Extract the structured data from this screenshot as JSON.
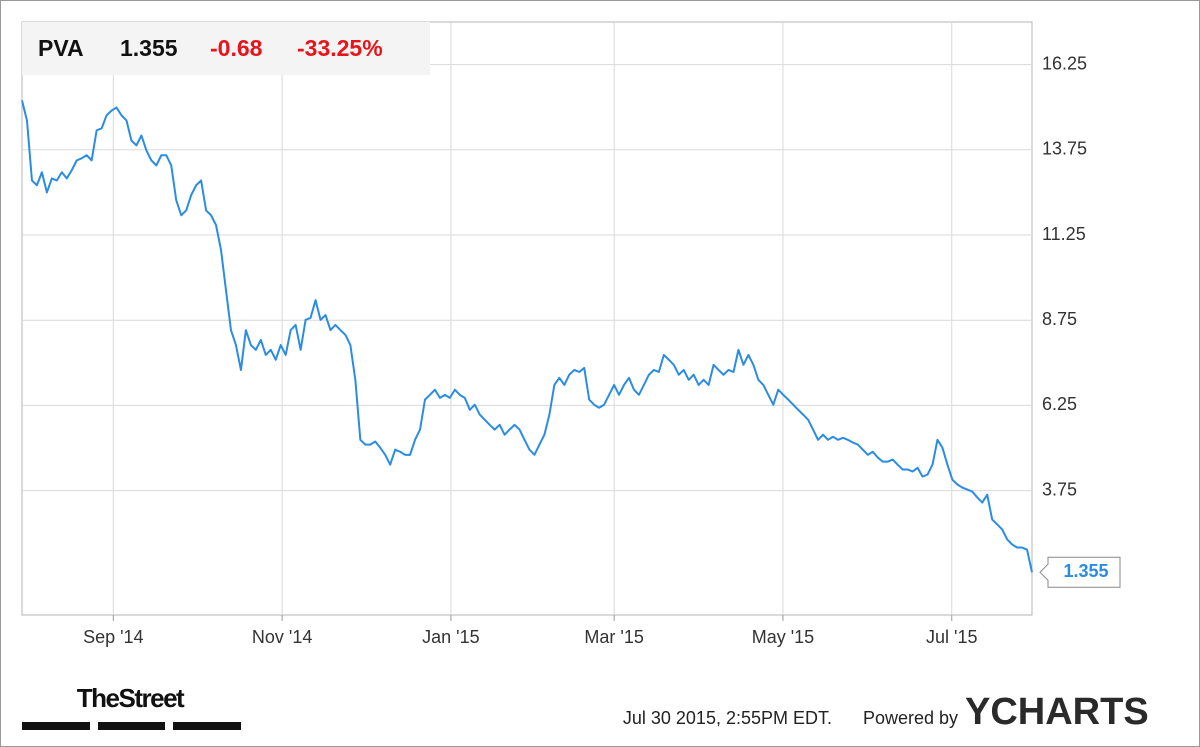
{
  "header": {
    "symbol": "PVA",
    "price": "1.355",
    "change": "-0.68",
    "change_percent": "-33.25%"
  },
  "footer": {
    "logo": "TheStreet",
    "timestamp": "Jul 30 2015, 2:55PM EDT.",
    "powered_by": "Powered by",
    "brand": "YCHARTS"
  },
  "chart_data": {
    "type": "line",
    "xlim": [
      "2014-07-30",
      "2015-07-30"
    ],
    "xticks": [
      {
        "value": "2014-09",
        "label": "Sep '14"
      },
      {
        "value": "2014-11",
        "label": "Nov '14"
      },
      {
        "value": "2015-01",
        "label": "Jan '15"
      },
      {
        "value": "2015-03",
        "label": "Mar '15"
      },
      {
        "value": "2015-05",
        "label": "May '15"
      },
      {
        "value": "2015-07",
        "label": "Jul '15"
      }
    ],
    "ylim": [
      0.1,
      17.5
    ],
    "yticks": [
      3.75,
      6.25,
      8.75,
      11.25,
      13.75,
      16.25
    ],
    "grid": true,
    "series": [
      {
        "name": "PVA",
        "color": "#2b8ce3",
        "values": [
          15.2,
          14.61,
          12.85,
          12.71,
          13.09,
          12.5,
          12.91,
          12.85,
          13.09,
          12.91,
          13.15,
          13.44,
          13.5,
          13.59,
          13.44,
          14.32,
          14.38,
          14.76,
          14.9,
          14.99,
          14.76,
          14.61,
          14.02,
          13.88,
          14.17,
          13.73,
          13.44,
          13.29,
          13.59,
          13.59,
          13.29,
          12.27,
          11.83,
          11.97,
          12.42,
          12.71,
          12.85,
          11.97,
          11.83,
          11.54,
          10.81,
          9.63,
          8.46,
          8.02,
          7.29,
          8.46,
          8.02,
          7.88,
          8.17,
          7.73,
          7.88,
          7.59,
          8.02,
          7.73,
          8.46,
          8.61,
          7.88,
          8.76,
          8.82,
          9.34,
          8.76,
          8.9,
          8.46,
          8.61,
          8.46,
          8.32,
          8.02,
          7.0,
          5.24,
          5.1,
          5.1,
          5.19,
          5.01,
          4.8,
          4.51,
          4.95,
          4.89,
          4.8,
          4.8,
          5.24,
          5.54,
          6.42,
          6.56,
          6.71,
          6.47,
          6.56,
          6.47,
          6.71,
          6.56,
          6.47,
          6.12,
          6.27,
          5.98,
          5.83,
          5.68,
          5.54,
          5.68,
          5.39,
          5.54,
          5.68,
          5.54,
          5.24,
          4.95,
          4.8,
          5.1,
          5.39,
          5.98,
          6.85,
          7.06,
          6.85,
          7.15,
          7.29,
          7.23,
          7.35,
          6.42,
          6.27,
          6.18,
          6.27,
          6.56,
          6.85,
          6.56,
          6.85,
          7.06,
          6.71,
          6.56,
          6.85,
          7.15,
          7.29,
          7.23,
          7.73,
          7.59,
          7.44,
          7.15,
          7.29,
          7.0,
          7.15,
          6.85,
          7.0,
          6.85,
          7.44,
          7.29,
          7.15,
          7.29,
          7.23,
          7.88,
          7.44,
          7.73,
          7.44,
          7.0,
          6.85,
          6.56,
          6.27,
          6.71,
          6.56,
          6.42,
          6.27,
          6.12,
          5.98,
          5.83,
          5.54,
          5.24,
          5.39,
          5.24,
          5.33,
          5.24,
          5.3,
          5.24,
          5.16,
          5.1,
          4.95,
          4.8,
          4.89,
          4.72,
          4.6,
          4.6,
          4.66,
          4.51,
          4.37,
          4.37,
          4.31,
          4.42,
          4.16,
          4.22,
          4.51,
          5.24,
          5.01,
          4.51,
          4.07,
          3.93,
          3.84,
          3.78,
          3.72,
          3.55,
          3.4,
          3.63,
          2.9,
          2.76,
          2.61,
          2.32,
          2.17,
          2.08,
          2.08,
          2.02,
          1.355
        ]
      }
    ]
  }
}
